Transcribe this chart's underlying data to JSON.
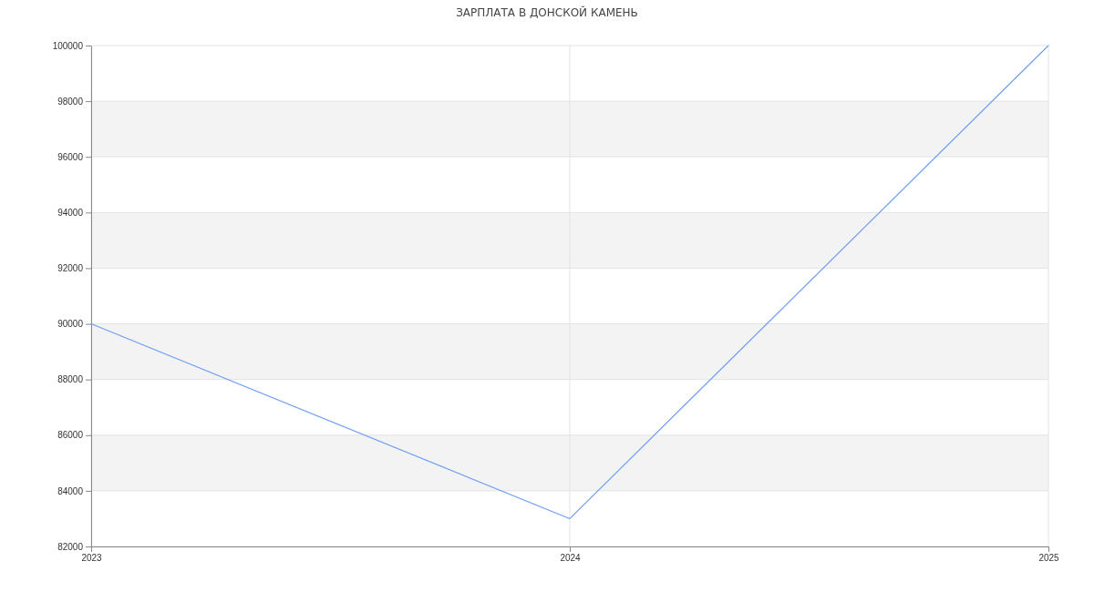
{
  "chart_data": {
    "type": "line",
    "title": "ЗАРПЛАТА В ДОНСКОЙ КАМЕНЬ",
    "categories": [
      "2023",
      "2024",
      "2025"
    ],
    "series": [
      {
        "color": "#6e9ef2",
        "values": [
          90000,
          83000,
          100000
        ]
      }
    ],
    "ylim": [
      82000,
      100000
    ],
    "yticks": [
      82000,
      84000,
      86000,
      88000,
      90000,
      92000,
      94000,
      96000,
      98000,
      100000
    ],
    "grid": true,
    "marker": "none",
    "line_style": "solid"
  }
}
